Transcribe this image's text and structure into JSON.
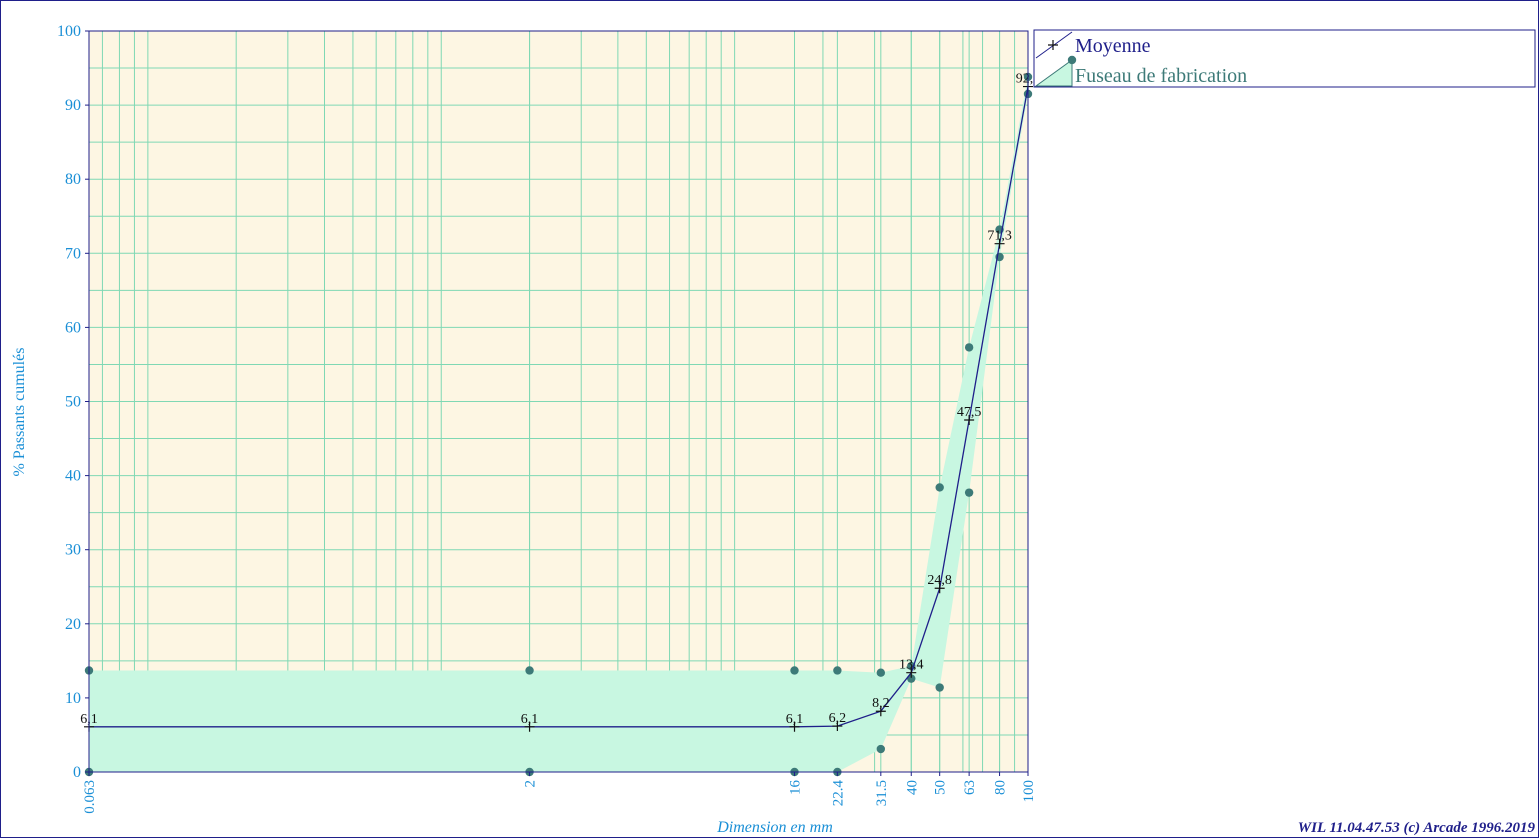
{
  "chart_data": {
    "type": "line",
    "xlabel": "Dimension en mm",
    "ylabel": "% Passants cumulés",
    "x_scale": "log",
    "xlim": [
      0.063,
      100
    ],
    "ylim": [
      0,
      100
    ],
    "y_ticks": [
      0,
      10,
      20,
      30,
      40,
      50,
      60,
      70,
      80,
      90,
      100
    ],
    "x_ticks": [
      "0.063",
      "2",
      "16",
      "22.4",
      "31.5",
      "40",
      "50",
      "63",
      "80",
      "100"
    ],
    "grid": true,
    "legend_position": "top-right",
    "colors": {
      "plot_bg": "#fdf6e3",
      "grid": "#7fd8b4",
      "band_fill": "#c8f7e1",
      "band_points": "#3d7a78",
      "mean_line": "#1f1f8a",
      "tick_text": "#1a8fd6"
    },
    "series": [
      {
        "name": "Moyenne",
        "x": [
          0.063,
          2,
          16,
          22.4,
          31.5,
          40,
          50,
          63,
          80,
          100
        ],
        "y": [
          6.1,
          6.1,
          6.1,
          6.2,
          8.2,
          13.4,
          24.8,
          47.5,
          71.3,
          92.5
        ],
        "labels": [
          "6,1",
          "6,1",
          "6,1",
          "6,2",
          "8,2",
          "13,4",
          "24,8",
          "47,5",
          "71,3",
          "92,5"
        ]
      },
      {
        "name": "Fuseau de fabrication",
        "x": [
          0.063,
          2,
          16,
          22.4,
          31.5,
          40,
          50,
          63,
          80,
          100
        ],
        "upper": [
          13.7,
          13.7,
          13.7,
          13.7,
          13.4,
          14.3,
          38.4,
          57.3,
          73.2,
          93.8
        ],
        "lower": [
          0,
          0,
          0,
          0,
          3.1,
          12.6,
          11.4,
          37.7,
          69.5,
          91.5
        ]
      }
    ],
    "footer": "WIL 11.04.47.53 (c) Arcade 1996.2019"
  }
}
